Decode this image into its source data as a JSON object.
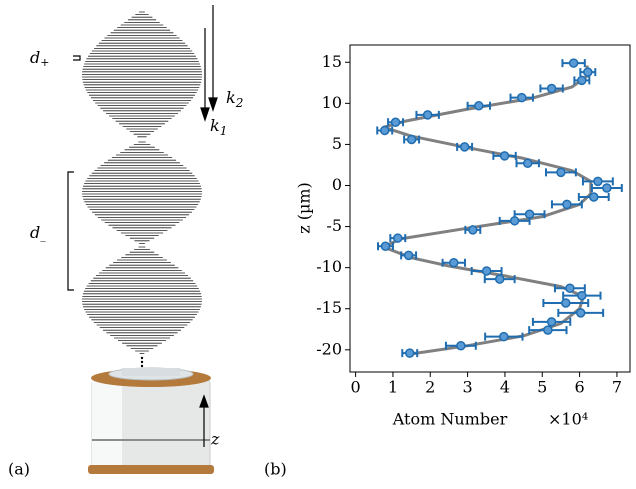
{
  "panel_a": {
    "d_plus": {
      "main": "d",
      "sub": "+"
    },
    "d_minus": {
      "main": "d",
      "sub": "_"
    },
    "k2": {
      "main": "k",
      "sub": "2"
    },
    "k1": {
      "main": "k",
      "sub": "1"
    },
    "z": "z",
    "label": "(a)"
  },
  "panel_b_label": "(b)",
  "chart_data": {
    "type": "scatter",
    "xlabel": "Atom Number",
    "x_multiplier": "×10⁴",
    "ylabel": "z (µm)",
    "xlim": [
      -0.15,
      7.35
    ],
    "ylim": [
      -22.7,
      17.1
    ],
    "xticks": [
      0,
      1,
      2,
      3,
      4,
      5,
      6,
      7
    ],
    "yticks": [
      -20,
      -15,
      -10,
      -5,
      0,
      5,
      10,
      15
    ],
    "points": {
      "color": "#5b9bd5",
      "edge_color": "#1f6db0",
      "x": [
        5.84,
        6.22,
        6.06,
        5.25,
        4.45,
        3.3,
        1.93,
        1.07,
        0.78,
        1.5,
        2.92,
        3.99,
        4.61,
        5.5,
        6.49,
        6.73,
        6.38,
        5.66,
        4.66,
        4.26,
        3.14,
        1.13,
        0.8,
        1.42,
        2.63,
        3.51,
        3.86,
        5.74,
        6.06,
        5.63,
        6.03,
        5.25,
        5.15,
        3.97,
        2.82,
        1.45
      ],
      "y": [
        14.9,
        13.8,
        12.8,
        11.8,
        10.7,
        9.7,
        8.6,
        7.7,
        6.7,
        5.6,
        4.7,
        3.6,
        2.7,
        1.6,
        0.5,
        -0.3,
        -1.4,
        -2.3,
        -3.5,
        -4.3,
        -5.4,
        -6.4,
        -7.4,
        -8.5,
        -9.4,
        -10.4,
        -11.4,
        -12.5,
        -13.4,
        -14.3,
        -15.5,
        -16.6,
        -17.6,
        -18.4,
        -19.5,
        -20.4
      ],
      "xerr": [
        0.3,
        0.2,
        0.2,
        0.3,
        0.3,
        0.3,
        0.3,
        0.2,
        0.2,
        0.2,
        0.2,
        0.3,
        0.3,
        0.4,
        0.4,
        0.4,
        0.4,
        0.4,
        0.4,
        0.4,
        0.2,
        0.2,
        0.2,
        0.2,
        0.3,
        0.4,
        0.4,
        0.4,
        0.5,
        0.6,
        0.6,
        0.5,
        0.5,
        0.5,
        0.4,
        0.2
      ]
    },
    "fit": {
      "color": "#808080",
      "x": [
        1.5,
        3.0,
        4.5,
        5.5,
        6.0,
        6.1,
        5.5,
        4.0,
        2.5,
        1.5,
        0.75,
        1.2,
        3.0,
        5.0,
        6.0,
        6.3,
        6.3,
        5.8,
        4.5,
        3.0,
        1.5,
        0.75,
        1.3,
        3.0,
        4.7,
        5.8,
        6.2,
        6.2
      ],
      "y": [
        -20.5,
        -19.5,
        -18.3,
        -16.8,
        -15.0,
        -13.5,
        -12.3,
        -11.0,
        -9.8,
        -8.8,
        -7.5,
        -6.5,
        -5.2,
        -3.8,
        -2.3,
        -1.0,
        0.5,
        1.8,
        3.3,
        4.6,
        6.0,
        7.1,
        7.8,
        9.3,
        10.6,
        12.0,
        13.3,
        14.6
      ]
    }
  }
}
